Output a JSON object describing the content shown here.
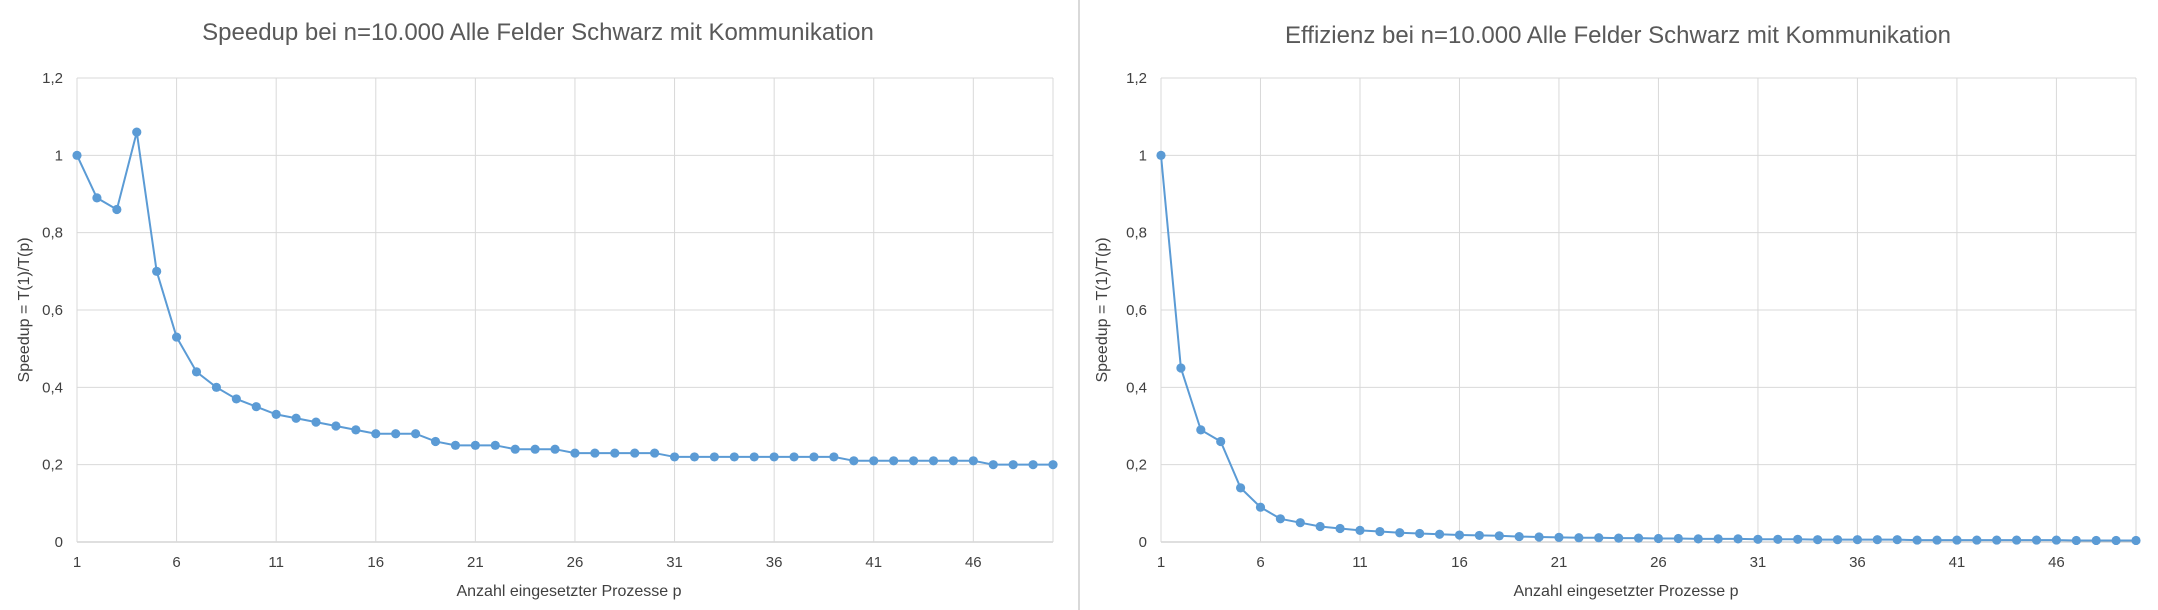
{
  "charts": [
    {
      "title": "Speedup bei n=10.000 Alle Felder Schwarz mit Kommunikation",
      "xlabel": "Anzahl eingesetzter Prozesse p",
      "ylabel": "Speedup = T(1)/T(p)",
      "y_tick_labels": [
        "0",
        "0,2",
        "0,4",
        "0,6",
        "0,8",
        "1",
        "1,2"
      ],
      "x_tick_labels": [
        "1",
        "6",
        "11",
        "16",
        "21",
        "26",
        "31",
        "36",
        "41",
        "46"
      ]
    },
    {
      "title": "Effizienz bei n=10.000 Alle Felder Schwarz mit Kommunikation",
      "xlabel": "Anzahl eingesetzter Prozesse p",
      "ylabel": "Speedup = T(1)/T(p)",
      "y_tick_labels": [
        "0",
        "0,2",
        "0,4",
        "0,6",
        "0,8",
        "1",
        "1,2"
      ],
      "x_tick_labels": [
        "1",
        "6",
        "11",
        "16",
        "21",
        "26",
        "31",
        "36",
        "41",
        "46"
      ]
    }
  ],
  "chart_data": [
    {
      "type": "line",
      "title": "Speedup bei n=10.000 Alle Felder Schwarz mit Kommunikation",
      "xlabel": "Anzahl eingesetzter Prozesse p",
      "ylabel": "Speedup = T(1)/T(p)",
      "x_range": [
        1,
        50
      ],
      "ylim": [
        0,
        1.2
      ],
      "grid": true,
      "series_color": "#5b9bd5",
      "x": [
        1,
        2,
        3,
        4,
        5,
        6,
        7,
        8,
        9,
        10,
        11,
        12,
        13,
        14,
        15,
        16,
        17,
        18,
        19,
        20,
        21,
        22,
        23,
        24,
        25,
        26,
        27,
        28,
        29,
        30,
        31,
        32,
        33,
        34,
        35,
        36,
        37,
        38,
        39,
        40,
        41,
        42,
        43,
        44,
        45,
        46,
        47,
        48,
        49,
        50
      ],
      "series": [
        {
          "values": [
            1.0,
            0.89,
            0.86,
            1.06,
            0.7,
            0.53,
            0.44,
            0.4,
            0.37,
            0.35,
            0.33,
            0.32,
            0.31,
            0.3,
            0.29,
            0.28,
            0.28,
            0.28,
            0.26,
            0.25,
            0.25,
            0.25,
            0.24,
            0.24,
            0.24,
            0.23,
            0.23,
            0.23,
            0.23,
            0.23,
            0.22,
            0.22,
            0.22,
            0.22,
            0.22,
            0.22,
            0.22,
            0.22,
            0.22,
            0.21,
            0.21,
            0.21,
            0.21,
            0.21,
            0.21,
            0.21,
            0.2,
            0.2,
            0.2,
            0.2
          ]
        }
      ]
    },
    {
      "type": "line",
      "title": "Effizienz bei n=10.000 Alle Felder Schwarz mit Kommunikation",
      "xlabel": "Anzahl eingesetzter Prozesse p",
      "ylabel": "Speedup = T(1)/T(p)",
      "x_range": [
        1,
        50
      ],
      "ylim": [
        0,
        1.2
      ],
      "grid": true,
      "series_color": "#5b9bd5",
      "x": [
        1,
        2,
        3,
        4,
        5,
        6,
        7,
        8,
        9,
        10,
        11,
        12,
        13,
        14,
        15,
        16,
        17,
        18,
        19,
        20,
        21,
        22,
        23,
        24,
        25,
        26,
        27,
        28,
        29,
        30,
        31,
        32,
        33,
        34,
        35,
        36,
        37,
        38,
        39,
        40,
        41,
        42,
        43,
        44,
        45,
        46,
        47,
        48,
        49,
        50
      ],
      "series": [
        {
          "values": [
            1.0,
            0.45,
            0.29,
            0.26,
            0.14,
            0.09,
            0.06,
            0.05,
            0.04,
            0.035,
            0.03,
            0.027,
            0.024,
            0.022,
            0.02,
            0.018,
            0.017,
            0.016,
            0.014,
            0.013,
            0.012,
            0.011,
            0.011,
            0.01,
            0.01,
            0.009,
            0.009,
            0.008,
            0.008,
            0.008,
            0.007,
            0.007,
            0.007,
            0.006,
            0.006,
            0.006,
            0.006,
            0.006,
            0.005,
            0.005,
            0.005,
            0.005,
            0.005,
            0.005,
            0.005,
            0.005,
            0.004,
            0.004,
            0.004,
            0.004
          ]
        }
      ]
    }
  ]
}
